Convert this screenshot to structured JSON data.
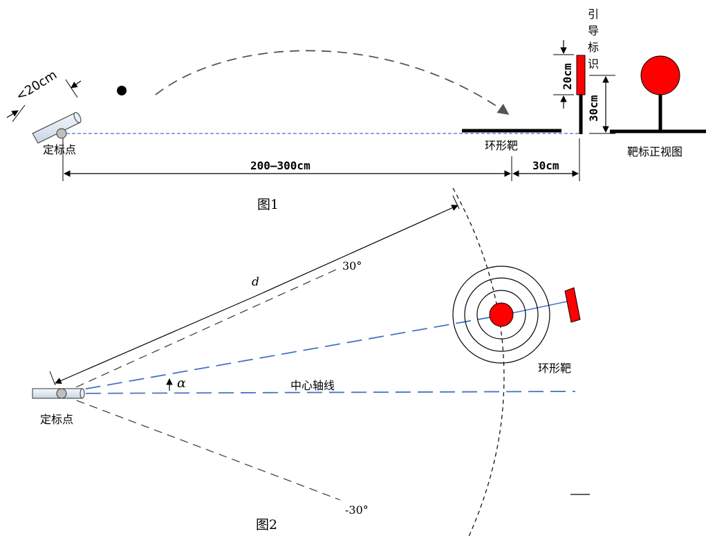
{
  "figure1": {
    "caption": "图1",
    "label_calibration_point": "定标点",
    "label_angle_limit": "<20cm",
    "label_ring_target": "环形靶",
    "label_guide_marker": [
      "引",
      "导",
      "标",
      "识"
    ],
    "label_front_view": "靶标正视图",
    "dim_distance": "200—300cm",
    "dim_offset": "30cm",
    "dim_marker_height": "20cm",
    "dim_pole_height": "30cm",
    "colors": {
      "red": "#ff0000",
      "blue_dash": "#4472c4",
      "black": "#000000",
      "gray": "#555555"
    }
  },
  "figure2": {
    "caption": "图2",
    "label_calibration_point": "定标点",
    "label_ring_target": "环形靶",
    "label_center_axis": "中心轴线",
    "label_distance": "d",
    "label_angle": "α",
    "label_plus30": "30°",
    "label_minus30": "-30°"
  }
}
